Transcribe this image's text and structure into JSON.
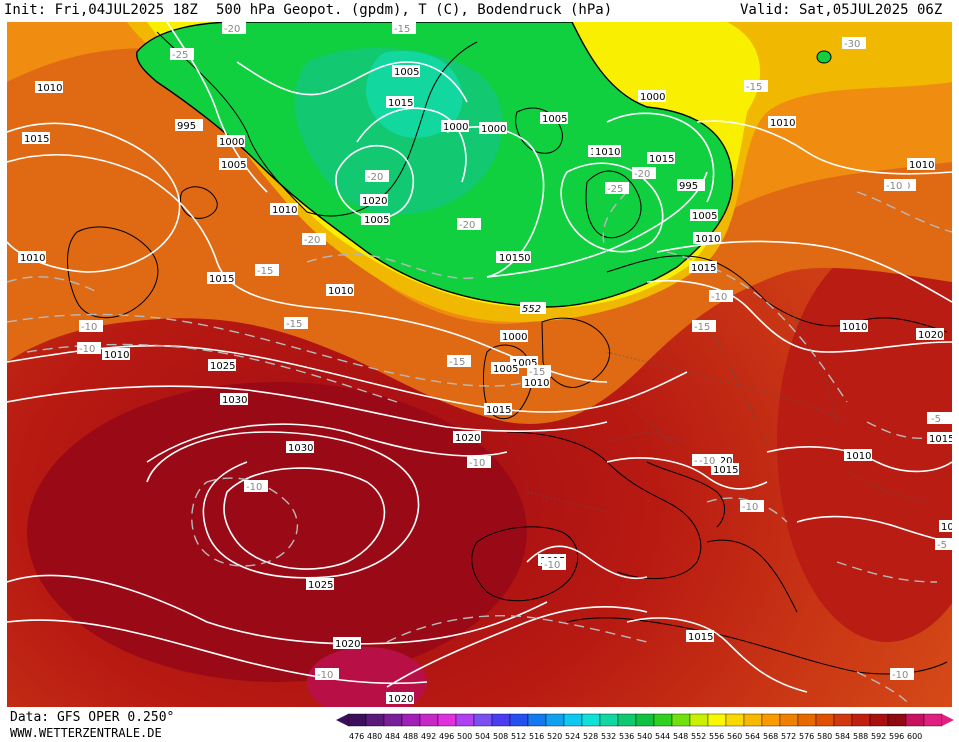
{
  "header": {
    "init": "Init: Fri,04JUL2025 18Z",
    "title": "500 hPa Geopot. (gpdm), T (C), Bodendruck (hPa)",
    "valid": "Valid: Sat,05JUL2025 06Z"
  },
  "footer": {
    "data_source": "Data: GFS OPER 0.250°",
    "website": "WWW.WETTERZENTRALE.DE"
  },
  "legend": {
    "ticks": [
      "476",
      "480",
      "484",
      "488",
      "492",
      "496",
      "500",
      "504",
      "508",
      "512",
      "516",
      "520",
      "524",
      "528",
      "532",
      "536",
      "540",
      "544",
      "548",
      "552",
      "556",
      "560",
      "564",
      "568",
      "572",
      "576",
      "580",
      "584",
      "588",
      "592",
      "596",
      "600"
    ],
    "colors": [
      "#3b0f5a",
      "#5a1a7a",
      "#7a1f9a",
      "#a020b8",
      "#c828c8",
      "#e030e0",
      "#b040f0",
      "#7a50f0",
      "#4c3cf0",
      "#2450f0",
      "#1478f0",
      "#10a0f0",
      "#10c8f0",
      "#10e0d8",
      "#10d8a0",
      "#10c870",
      "#10c040",
      "#30d020",
      "#70e010",
      "#c8f000",
      "#f8f800",
      "#f8d800",
      "#f8b800",
      "#f89a00",
      "#f08000",
      "#e86800",
      "#e05000",
      "#d03810",
      "#c02010",
      "#a81010",
      "#900810",
      "#c81060",
      "#e02080"
    ]
  },
  "map": {
    "geopot_label": "552",
    "pressure_labels": [
      "1010",
      "1015",
      "995",
      "1000",
      "1005",
      "1005",
      "1015",
      "1000",
      "1000",
      "1005",
      "1010",
      "995",
      "1000",
      "1005",
      "1010",
      "1015",
      "1010",
      "1005",
      "1020",
      "1010",
      "1015",
      "1010",
      "1000",
      "1005",
      "1010",
      "1015",
      "1020",
      "1025",
      "1030",
      "1030",
      "1025",
      "1020",
      "1020",
      "1015",
      "1020",
      "1015",
      "1010",
      "1015",
      "1015",
      "1010",
      "1010",
      "1010",
      "1015",
      "1020",
      "1010",
      "1015",
      "1005",
      "1010",
      "1015",
      "1005",
      "1010",
      "1015"
    ],
    "temp_labels": [
      "-20",
      "-15",
      "-25",
      "-30",
      "-20",
      "-20",
      "-20",
      "-20",
      "-25",
      "-15",
      "-15",
      "-15",
      "-10",
      "-15",
      "-10",
      "-15",
      "-10",
      "-10",
      "-5",
      "-10",
      "-10",
      "-10",
      "-5",
      "-10",
      "-15",
      "-10",
      "-10",
      "-15",
      "-5",
      "-10",
      "-10"
    ]
  }
}
